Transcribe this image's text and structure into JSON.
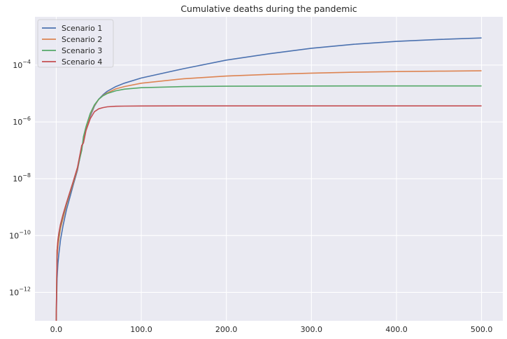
{
  "chart_data": {
    "type": "line",
    "title": "Cumulative deaths during the pandemic",
    "xlabel": "",
    "ylabel": "",
    "xlim": [
      -25,
      525
    ],
    "ylim": [
      1e-13,
      0.005
    ],
    "yscale": "log",
    "x_ticks": [
      0,
      100,
      200,
      300,
      400,
      500
    ],
    "x_tick_labels": [
      "0.0",
      "100.0",
      "200.0",
      "300.0",
      "400.0",
      "500.0"
    ],
    "y_ticks": [
      1e-12,
      1e-10,
      1e-08,
      1e-06,
      0.0001
    ],
    "y_tick_labels": [
      {
        "base": "10",
        "exp": "−12"
      },
      {
        "base": "10",
        "exp": "−10"
      },
      {
        "base": "10",
        "exp": "−8"
      },
      {
        "base": "10",
        "exp": "−6"
      },
      {
        "base": "10",
        "exp": "−4"
      }
    ],
    "grid": true,
    "legend_position": "top-left",
    "background": "#eaeaf2",
    "series": [
      {
        "name": "Scenario 1",
        "color": "#4c72b0",
        "x": [
          0,
          1,
          2,
          3,
          5,
          8,
          12,
          16,
          20,
          25,
          30,
          35,
          40,
          45,
          50,
          55,
          60,
          70,
          80,
          100,
          150,
          200,
          250,
          300,
          350,
          400,
          450,
          500
        ],
        "y": [
          1e-13,
          3e-12,
          1e-11,
          2.2e-11,
          7e-11,
          2.2e-10,
          8e-10,
          2.2e-09,
          6e-09,
          2e-08,
          1.2e-07,
          5.5e-07,
          1.6e-06,
          3.6e-06,
          6.3e-06,
          9e-06,
          1.2e-05,
          1.75e-05,
          2.3e-05,
          3.5e-05,
          7.5e-05,
          0.00015,
          0.00025,
          0.00039,
          0.00054,
          0.00068,
          0.0008,
          0.0009
        ]
      },
      {
        "name": "Scenario 2",
        "color": "#dd8452",
        "x": [
          0,
          1,
          2,
          3,
          5,
          8,
          12,
          16,
          20,
          25,
          30,
          35,
          40,
          45,
          50,
          55,
          60,
          70,
          80,
          100,
          150,
          200,
          250,
          300,
          350,
          400,
          450,
          500
        ],
        "y": [
          1e-13,
          1.5e-11,
          4e-11,
          7e-11,
          1.8e-10,
          4e-10,
          1.2e-09,
          3e-09,
          7e-09,
          2.2e-08,
          1.2e-07,
          6e-07,
          1.8e-06,
          3.8e-06,
          6.2e-06,
          8.5e-06,
          1.05e-05,
          1.45e-05,
          1.75e-05,
          2.3e-05,
          3.3e-05,
          4.1e-05,
          4.7e-05,
          5.2e-05,
          5.6e-05,
          5.9e-05,
          6.1e-05,
          6.3e-05
        ]
      },
      {
        "name": "Scenario 3",
        "color": "#55a868",
        "x": [
          0,
          1,
          2,
          3,
          5,
          8,
          12,
          16,
          20,
          25,
          30,
          32,
          35,
          40,
          45,
          50,
          55,
          60,
          70,
          80,
          100,
          150,
          200,
          250,
          300,
          350,
          400,
          450,
          500
        ],
        "y": [
          1e-13,
          3e-11,
          6e-11,
          1e-10,
          2.2e-10,
          5e-10,
          1.3e-09,
          3.2e-09,
          7.5e-09,
          2.4e-08,
          1e-07,
          3e-07,
          6.8e-07,
          2e-06,
          4e-06,
          6.3e-06,
          8.3e-06,
          1e-05,
          1.25e-05,
          1.42e-05,
          1.6e-05,
          1.75e-05,
          1.8e-05,
          1.82e-05,
          1.83e-05,
          1.84e-05,
          1.84e-05,
          1.84e-05,
          1.84e-05
        ]
      },
      {
        "name": "Scenario 4",
        "color": "#c44e52",
        "x": [
          0,
          1,
          2,
          3,
          5,
          8,
          12,
          16,
          20,
          25,
          30,
          32,
          35,
          40,
          45,
          50,
          55,
          60,
          70,
          80,
          100,
          150,
          200,
          250,
          300,
          350,
          400,
          450,
          500
        ],
        "y": [
          1e-13,
          3e-11,
          7e-11,
          1.2e-10,
          2.5e-10,
          5.5e-10,
          1.4e-09,
          3.4e-09,
          8e-09,
          2.5e-08,
          1.5e-07,
          1.8e-07,
          5e-07,
          1.3e-06,
          2.3e-06,
          2.9e-06,
          3.2e-06,
          3.4e-06,
          3.55e-06,
          3.6e-06,
          3.63e-06,
          3.65e-06,
          3.65e-06,
          3.65e-06,
          3.65e-06,
          3.65e-06,
          3.65e-06,
          3.65e-06,
          3.65e-06
        ]
      }
    ]
  }
}
